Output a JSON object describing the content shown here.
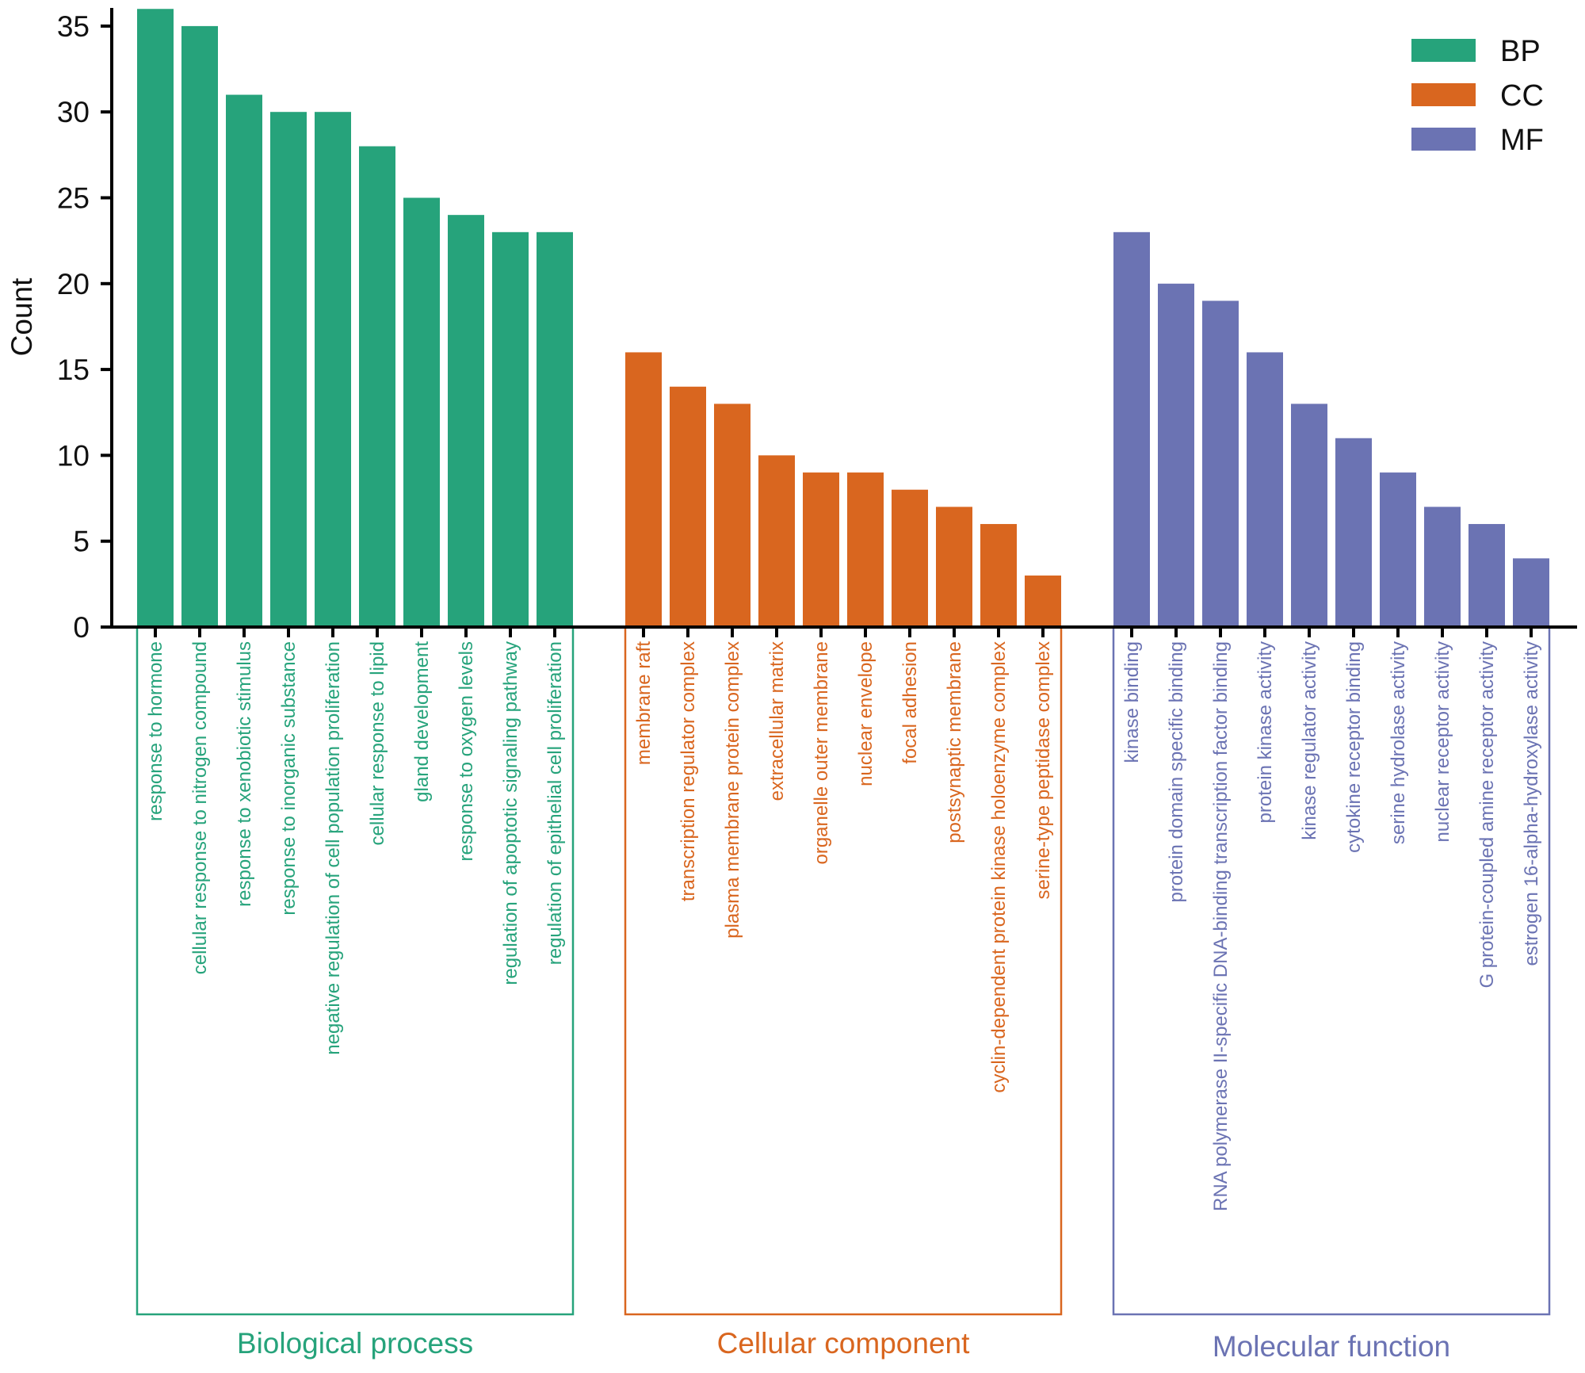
{
  "chart_data": {
    "type": "bar",
    "title": "",
    "xlabel": "",
    "ylabel": "Count",
    "ylim": [
      0,
      36
    ],
    "yticks": [
      0,
      5,
      10,
      15,
      20,
      25,
      30,
      35
    ],
    "grid": false,
    "legend_position": "top-right",
    "legend": [
      {
        "key": "BP",
        "label": "BP",
        "color": "#26a37b"
      },
      {
        "key": "CC",
        "label": "CC",
        "color": "#d9661f"
      },
      {
        "key": "MF",
        "label": "MF",
        "color": "#6b73b3"
      }
    ],
    "series": [
      {
        "name": "BP",
        "group_title": "Biological process",
        "color": "#26a37b",
        "categories": [
          "response to hormone",
          "cellular response to nitrogen compound",
          "response to xenobiotic stimulus",
          "response to inorganic substance",
          "negative regulation of cell population proliferation",
          "cellular response to lipid",
          "gland development",
          "response to oxygen levels",
          "regulation of apoptotic signaling pathway",
          "regulation of epithelial cell proliferation"
        ],
        "values": [
          36,
          35,
          31,
          30,
          30,
          28,
          25,
          24,
          23,
          23
        ]
      },
      {
        "name": "CC",
        "group_title": "Cellular component",
        "color": "#d9661f",
        "categories": [
          "membrane raft",
          "transcription regulator complex",
          "plasma membrane protein complex",
          "extracellular matrix",
          "organelle outer membrane",
          "nuclear envelope",
          "focal adhesion",
          "postsynaptic membrane",
          "cyclin-dependent protein kinase holoenzyme complex",
          "serine-type peptidase complex"
        ],
        "values": [
          16,
          14,
          13,
          10,
          9,
          9,
          8,
          7,
          6,
          3
        ]
      },
      {
        "name": "MF",
        "group_title": "Molecular function",
        "color": "#6b73b3",
        "categories": [
          "kinase binding",
          "protein domain specific binding",
          "RNA polymerase II-specific DNA-binding transcription factor binding",
          "protein kinase activity",
          "kinase regulator activity",
          "cytokine receptor binding",
          "serine hydrolase activity",
          "nuclear receptor activity",
          "G protein-coupled amine receptor activity",
          "estrogen 16-alpha-hydroxylase activity"
        ],
        "values": [
          23,
          20,
          19,
          16,
          13,
          11,
          9,
          7,
          6,
          4
        ]
      }
    ]
  }
}
